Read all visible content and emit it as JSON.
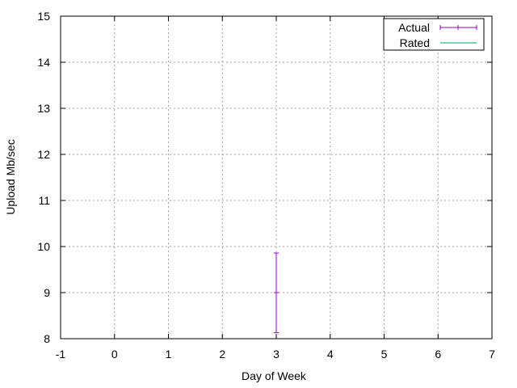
{
  "chart_data": {
    "type": "scatter",
    "title": "",
    "xlabel": "Day of Week",
    "ylabel": "Upload Mb/sec",
    "xlim": [
      -1,
      7
    ],
    "ylim": [
      8,
      15
    ],
    "xticks": [
      -1,
      0,
      1,
      2,
      3,
      4,
      5,
      6,
      7
    ],
    "yticks": [
      8,
      9,
      10,
      11,
      12,
      13,
      14,
      15
    ],
    "grid": true,
    "legend_position": "top-right",
    "series": [
      {
        "name": "Actual",
        "style": "errorbar",
        "color": "#9400d3",
        "points": [
          {
            "x": 3,
            "y": 9.0,
            "ylow": 8.13,
            "yhigh": 9.86
          }
        ]
      },
      {
        "name": "Rated",
        "style": "line",
        "color": "#009e73",
        "points": []
      }
    ]
  }
}
